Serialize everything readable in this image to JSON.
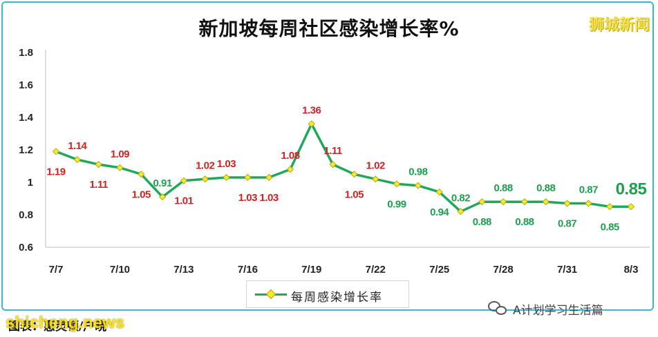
{
  "brand": "狮城新闻",
  "caption": "图表：惠灵顿/户晓",
  "watermark": "shicheng.news",
  "wechat": {
    "account": "A计划学习生活篇"
  },
  "colors": {
    "line": "#20a85a",
    "marker": "#f2ea2b",
    "label_red": "#d42020",
    "label_green": "#1e9e4f",
    "frame": "#38b9c9"
  },
  "chart_data": {
    "type": "line",
    "title": "新加坡每周社区感染增长率%",
    "xlabel": "",
    "ylabel": "",
    "ylim": [
      0.6,
      1.8
    ],
    "yticks": [
      "0.6",
      "0.8",
      "1",
      "1.2",
      "1.4",
      "1.6",
      "1.8"
    ],
    "grid": false,
    "legend": "bottom",
    "x": [
      "7/7",
      "7/8",
      "7/9",
      "7/10",
      "7/11",
      "7/12",
      "7/13",
      "7/14",
      "7/15",
      "7/16",
      "7/17",
      "7/18",
      "7/19",
      "7/20",
      "7/21",
      "7/22",
      "7/23",
      "7/24",
      "7/25",
      "7/26",
      "7/27",
      "7/28",
      "7/29",
      "7/30",
      "7/31",
      "8/1",
      "8/2",
      "8/3"
    ],
    "xtick_labels": [
      "7/7",
      "7/10",
      "7/13",
      "7/16",
      "7/19",
      "7/22",
      "7/25",
      "7/28",
      "7/31",
      "8/3"
    ],
    "series": [
      {
        "name": "每周感染增长率",
        "values": [
          1.19,
          1.14,
          1.11,
          1.09,
          1.05,
          0.91,
          1.01,
          1.02,
          1.03,
          1.03,
          1.03,
          1.08,
          1.36,
          1.11,
          1.05,
          1.02,
          0.99,
          0.98,
          0.94,
          0.82,
          0.88,
          0.88,
          0.88,
          0.88,
          0.87,
          0.87,
          0.85,
          0.85
        ],
        "data_labels": [
          "1.19",
          "1.14",
          "1.11",
          "1.09",
          "1.05",
          "0.91",
          "1.01",
          "1.02",
          "1.03",
          "1.03",
          "1.03",
          "1.08",
          "1.36",
          "1.11",
          "1.05",
          "1.02",
          "0.99",
          "0.98",
          "0.94",
          "0.82",
          "0.88",
          "0.88",
          "0.88",
          "0.88",
          "0.87",
          "0.87",
          "0.85",
          "0.85"
        ]
      }
    ]
  }
}
